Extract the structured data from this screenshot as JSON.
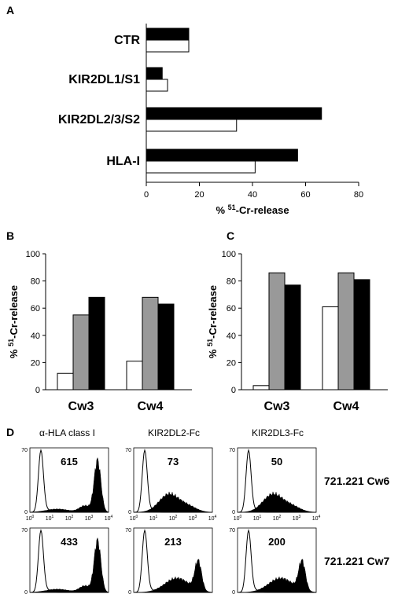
{
  "colors": {
    "filled": "#000000",
    "open": "#ffffff",
    "gray": "#999999",
    "stroke": "#000000"
  },
  "chart_data": [
    {
      "panel": "A",
      "type": "bar",
      "orientation": "horizontal",
      "categories": [
        "CTR",
        "KIR2DL1/S1",
        "KIR2DL2/3/S2",
        "HLA-I"
      ],
      "series": [
        {
          "fill": "black",
          "values": [
            16,
            6,
            66,
            57
          ]
        },
        {
          "fill": "white",
          "values": [
            16,
            8,
            34,
            41
          ]
        }
      ],
      "xlim": [
        0,
        80
      ],
      "xticks": [
        "0",
        "20",
        "40",
        "60",
        "80"
      ],
      "xlabel_prefix": "% ",
      "xlabel_sup": "51",
      "xlabel_rest": "-Cr-release"
    },
    {
      "panel": "B",
      "type": "bar",
      "categories": [
        "Cw3",
        "Cw4"
      ],
      "series": [
        {
          "fill": "white",
          "values": [
            12,
            21
          ]
        },
        {
          "fill": "gray",
          "values": [
            55,
            68
          ]
        },
        {
          "fill": "black",
          "values": [
            68,
            63
          ]
        }
      ],
      "ylim": [
        0,
        100
      ],
      "yticks": [
        "0",
        "20",
        "40",
        "60",
        "80",
        "100"
      ],
      "ylabel_prefix": "% ",
      "ylabel_sup": "51",
      "ylabel_rest": "-Cr-release"
    },
    {
      "panel": "C",
      "type": "bar",
      "categories": [
        "Cw3",
        "Cw4"
      ],
      "series": [
        {
          "fill": "white",
          "values": [
            3,
            61
          ]
        },
        {
          "fill": "gray",
          "values": [
            86,
            86
          ]
        },
        {
          "fill": "black",
          "values": [
            77,
            81
          ]
        }
      ],
      "ylim": [
        0,
        100
      ],
      "yticks": [
        "0",
        "20",
        "40",
        "60",
        "80",
        "100"
      ],
      "ylabel_prefix": "% ",
      "ylabel_sup": "51",
      "ylabel_rest": "-Cr-release"
    },
    {
      "panel": "D",
      "type": "histogram-grid",
      "columns": [
        "α-HLA class I",
        "KIR2DL2-Fc",
        "KIR2DL3-Fc"
      ],
      "rows": [
        "721.221 Cw6",
        "721.221 Cw7"
      ],
      "values": [
        [
          615,
          73,
          50
        ],
        [
          433,
          213,
          200
        ]
      ],
      "y_tick_labels": [
        "0",
        "70"
      ],
      "x_tick_labels": [
        "10",
        "10",
        "10",
        "10",
        "10"
      ],
      "x_tick_exponents": [
        "0",
        "1",
        "2",
        "3",
        "4"
      ]
    }
  ]
}
